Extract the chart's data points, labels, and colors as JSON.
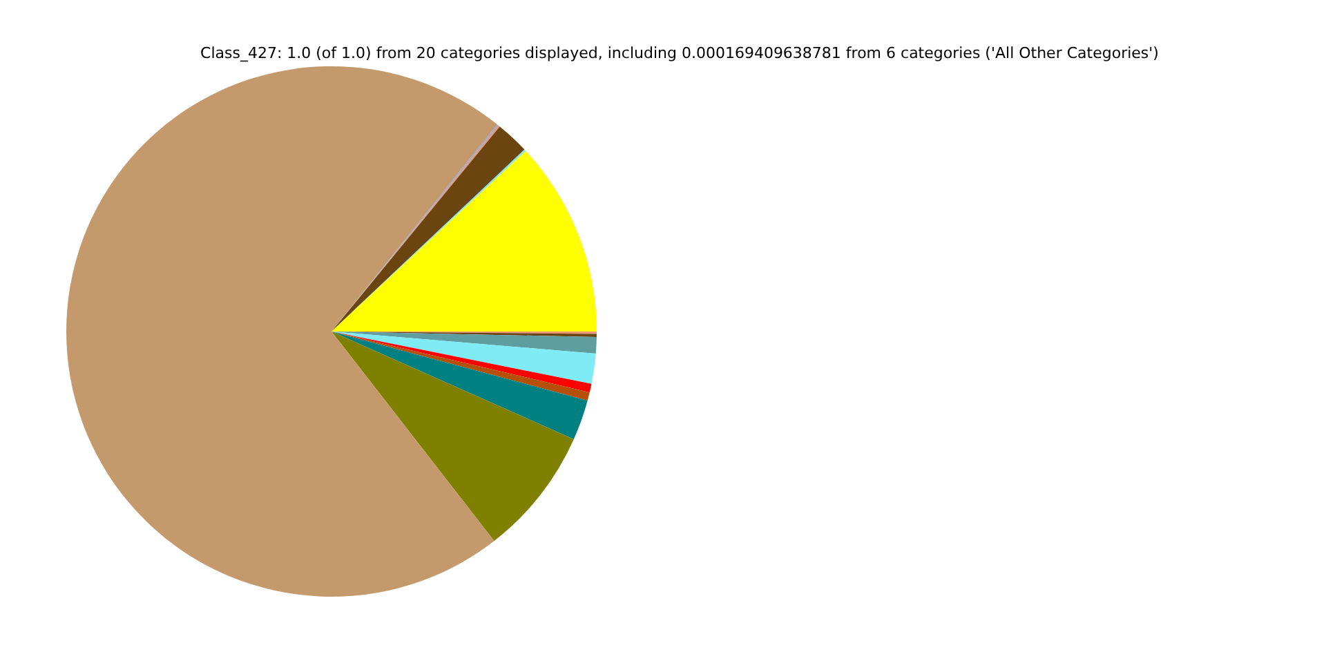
{
  "chart_data": {
    "type": "pie",
    "title": "Class_427: 1.0 (of 1.0) from 20 categories displayed, including 0.000169409638781 from 6 categories ('All Other Categories')",
    "categories": [
      null,
      null,
      null,
      null,
      null,
      null,
      null,
      null,
      null,
      null,
      null,
      null,
      null,
      null
    ],
    "values": [
      0.14,
      0.19,
      1.0,
      1.83,
      0.53,
      0.5,
      2.47,
      7.83,
      71.26,
      0.08,
      0.11,
      2.03,
      0.11,
      11.92
    ],
    "colors": [
      "#e9967a",
      "#6b4510",
      "#5f9ea0",
      "#7febf5",
      "#ff0000",
      "#b5500b",
      "#008080",
      "#808000",
      "#c49a6c",
      "#87a9d6",
      "#e9967a",
      "#6b4510",
      "#7fe5f0",
      "#ffff00"
    ],
    "legend": false
  }
}
